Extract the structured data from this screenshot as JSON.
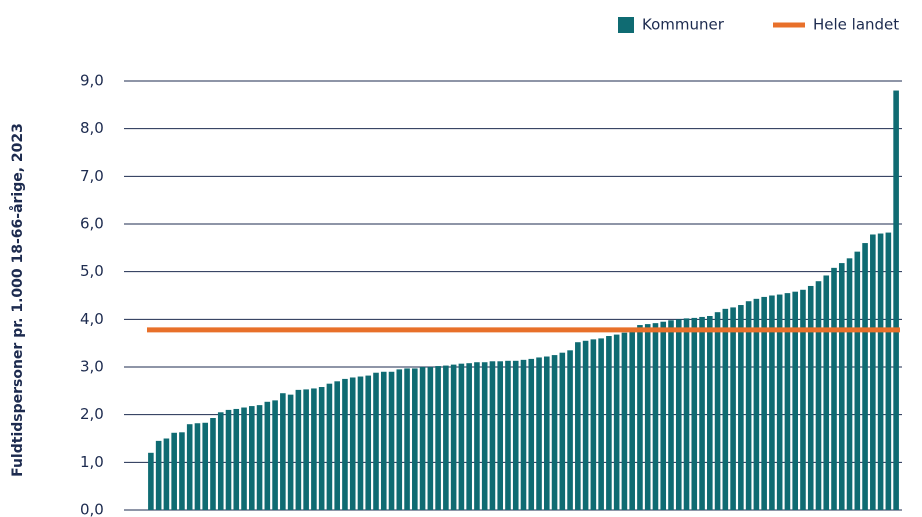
{
  "chart_data": {
    "type": "bar",
    "y_axis_label": "Fuldtidspersoner pr. 1.000 18-66-årige, 2023",
    "categories": [
      null,
      null,
      null,
      null,
      null,
      null,
      null,
      null,
      null,
      null,
      null,
      null,
      null,
      null,
      null,
      null,
      null,
      null,
      null,
      null,
      null,
      null,
      null,
      null,
      null,
      null,
      null,
      null,
      null,
      null,
      null,
      null,
      null,
      null,
      null,
      null,
      null,
      null,
      null,
      null,
      null,
      null,
      null,
      null,
      null,
      null,
      null,
      null,
      null,
      null,
      null,
      null,
      null,
      null,
      null,
      null,
      null,
      null,
      null,
      null,
      null,
      null,
      null,
      null,
      null,
      null,
      null,
      null,
      null,
      null,
      null,
      null,
      null,
      null,
      null,
      null,
      null,
      null,
      null,
      null,
      null,
      null,
      null,
      null,
      null,
      null,
      null,
      null,
      null,
      null,
      null,
      null,
      null,
      null,
      null,
      null,
      null
    ],
    "series": [
      {
        "name": "Kommuner",
        "color": "#0f6b72",
        "values": [
          1.2,
          1.45,
          1.5,
          1.62,
          1.63,
          1.8,
          1.82,
          1.83,
          1.93,
          2.05,
          2.1,
          2.12,
          2.15,
          2.18,
          2.2,
          2.27,
          2.3,
          2.45,
          2.42,
          2.52,
          2.53,
          2.55,
          2.58,
          2.65,
          2.7,
          2.75,
          2.78,
          2.8,
          2.82,
          2.88,
          2.9,
          2.9,
          2.95,
          2.97,
          2.97,
          3.0,
          3.0,
          3.02,
          3.03,
          3.05,
          3.07,
          3.08,
          3.1,
          3.1,
          3.12,
          3.12,
          3.13,
          3.13,
          3.15,
          3.17,
          3.2,
          3.22,
          3.25,
          3.3,
          3.35,
          3.52,
          3.55,
          3.58,
          3.6,
          3.65,
          3.68,
          3.72,
          3.78,
          3.88,
          3.9,
          3.92,
          3.95,
          3.98,
          4.0,
          4.02,
          4.03,
          4.05,
          4.07,
          4.15,
          4.22,
          4.25,
          4.3,
          4.38,
          4.43,
          4.47,
          4.5,
          4.52,
          4.55,
          4.58,
          4.62,
          4.7,
          4.8,
          4.92,
          5.08,
          5.18,
          5.28,
          5.42,
          5.6,
          5.78,
          5.8,
          5.82,
          8.8
        ]
      }
    ],
    "reference_line": {
      "name": "Hele landet",
      "value": 3.78,
      "color": "#e8702a"
    },
    "ylim": [
      0,
      9
    ],
    "yticks": [
      {
        "value": 0,
        "label": "0,0"
      },
      {
        "value": 1,
        "label": "1,0"
      },
      {
        "value": 2,
        "label": "2,0"
      },
      {
        "value": 3,
        "label": "3,0"
      },
      {
        "value": 4,
        "label": "4,0"
      },
      {
        "value": 5,
        "label": "5,0"
      },
      {
        "value": 6,
        "label": "6,0"
      },
      {
        "value": 7,
        "label": "7,0"
      },
      {
        "value": 8,
        "label": "8,0"
      },
      {
        "value": 9,
        "label": "9,0"
      }
    ],
    "grid": true,
    "legend": "top-right"
  }
}
